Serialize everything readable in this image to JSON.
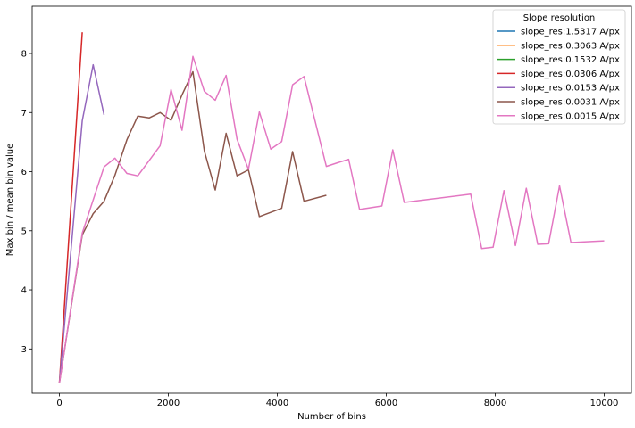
{
  "chart_data": {
    "type": "line",
    "xlabel": "Number of bins",
    "ylabel": "Max bin / mean bin value",
    "xlim": [
      -500,
      10500
    ],
    "ylim": [
      2.25,
      8.8
    ],
    "x_ticks": [
      0,
      2000,
      4000,
      6000,
      8000,
      10000
    ],
    "y_ticks": [
      3,
      4,
      5,
      6,
      7,
      8
    ],
    "grid": false,
    "legend": {
      "title": "Slope resolution",
      "placement": "top-right"
    },
    "series": [
      {
        "name": "slope_res:1.5317 A/px",
        "color": "#1f77b4",
        "x": [
          0
        ],
        "y": [
          2.42
        ]
      },
      {
        "name": "slope_res:0.3063 A/px",
        "color": "#ff7f0e",
        "x": [
          0
        ],
        "y": [
          2.42
        ]
      },
      {
        "name": "slope_res:0.1532 A/px",
        "color": "#2ca02c",
        "x": [
          0
        ],
        "y": [
          2.42
        ]
      },
      {
        "name": "slope_res:0.0306 A/px",
        "color": "#d62728",
        "x": [
          0,
          420
        ],
        "y": [
          2.42,
          8.36
        ]
      },
      {
        "name": "slope_res:0.0153 A/px",
        "color": "#9467bd",
        "x": [
          0,
          420,
          620,
          820
        ],
        "y": [
          2.42,
          6.86,
          7.81,
          6.96
        ]
      },
      {
        "name": "slope_res:0.0031 A/px",
        "color": "#8c564b",
        "x": [
          0,
          420,
          620,
          820,
          1020,
          1240,
          1440,
          1650,
          1850,
          2050,
          2250,
          2450,
          2660,
          2860,
          3060,
          3260,
          3470,
          3670,
          4080,
          4280,
          4490,
          4900
        ],
        "y": [
          2.42,
          4.93,
          5.29,
          5.5,
          5.94,
          6.54,
          6.94,
          6.91,
          7.0,
          6.87,
          7.3,
          7.69,
          6.35,
          5.69,
          6.65,
          5.93,
          6.03,
          5.24,
          5.38,
          6.34,
          5.5,
          5.6
        ]
      },
      {
        "name": "slope_res:0.0015 A/px",
        "color": "#e377c2",
        "x": [
          0,
          420,
          820,
          1020,
          1240,
          1440,
          1850,
          2050,
          2250,
          2450,
          2660,
          2860,
          3060,
          3260,
          3470,
          3670,
          3880,
          4080,
          4280,
          4490,
          4900,
          5100,
          5310,
          5510,
          5920,
          6120,
          6330,
          7550,
          7750,
          7960,
          8160,
          8370,
          8570,
          8780,
          8980,
          9180,
          9390,
          10000
        ],
        "y": [
          2.42,
          4.96,
          6.08,
          6.23,
          5.97,
          5.93,
          6.44,
          7.39,
          6.7,
          7.95,
          7.36,
          7.21,
          7.63,
          6.55,
          6.04,
          7.01,
          6.38,
          6.51,
          7.47,
          7.61,
          6.09,
          6.15,
          6.21,
          5.36,
          5.42,
          6.37,
          5.48,
          5.62,
          4.7,
          4.72,
          5.68,
          4.75,
          5.72,
          4.77,
          4.78,
          5.76,
          4.8,
          4.83
        ]
      }
    ]
  }
}
